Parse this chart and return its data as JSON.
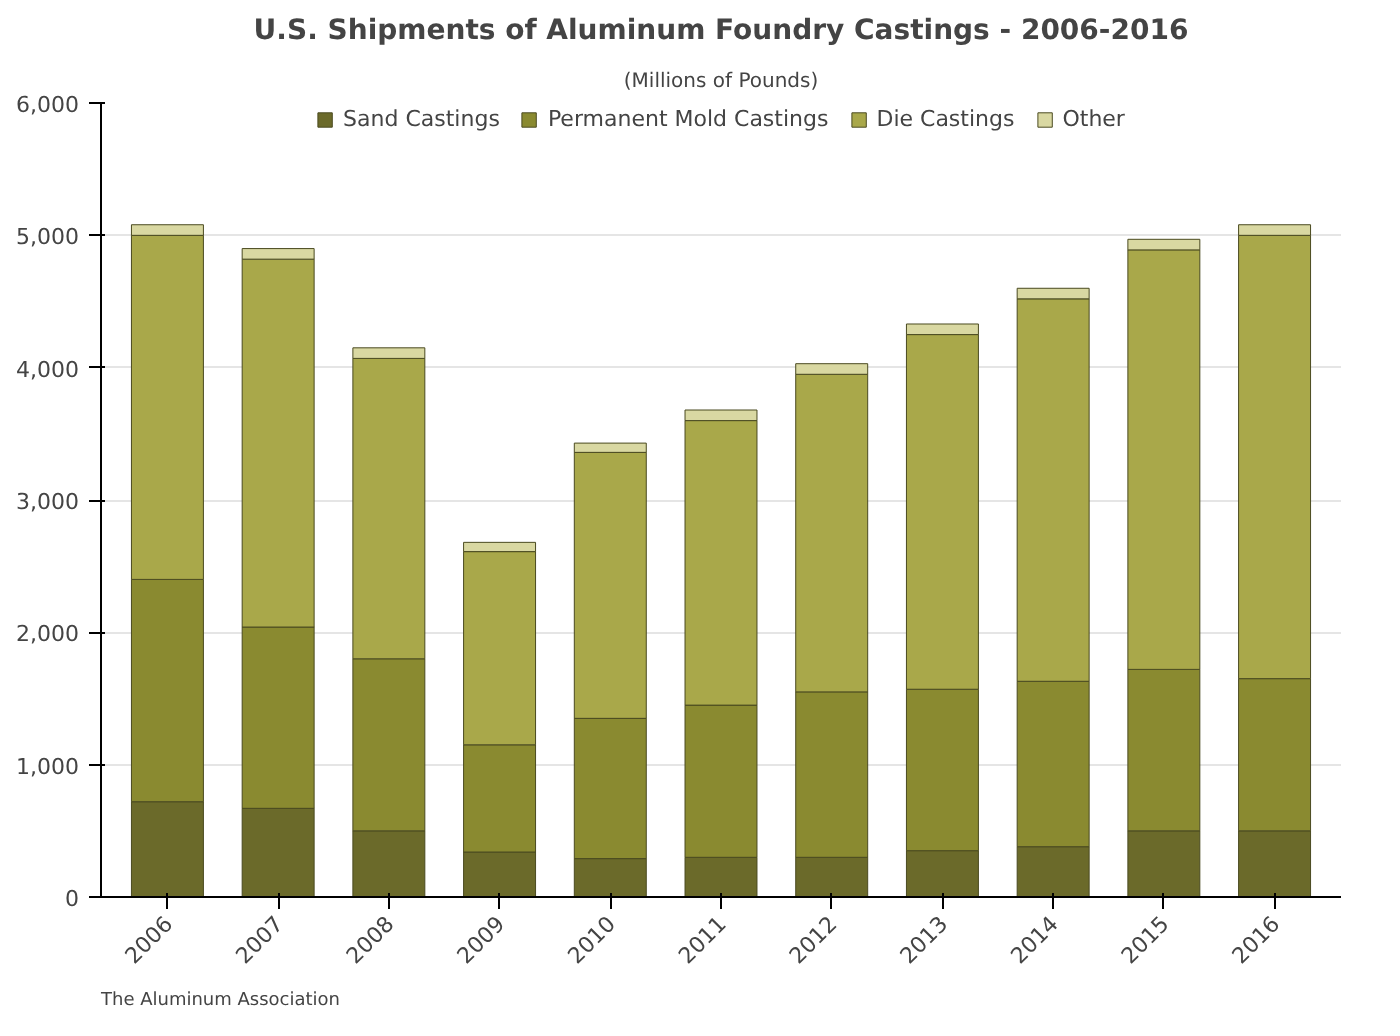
{
  "chart_data": {
    "type": "bar",
    "title": "U.S. Shipments of Aluminum Foundry Castings - 2006-2016",
    "subtitle": "(Millions of Pounds)",
    "categories": [
      "2006",
      "2007",
      "2008",
      "2009",
      "2010",
      "2011",
      "2012",
      "2013",
      "2014",
      "2015",
      "2016"
    ],
    "stacked": true,
    "series": [
      {
        "name": "Sand Castings",
        "color": "#6b6a2a",
        "values": [
          720,
          670,
          500,
          340,
          290,
          300,
          300,
          350,
          380,
          500,
          500
        ]
      },
      {
        "name": "Permanent Mold Castings",
        "color": "#8a8a30",
        "values": [
          1680,
          1370,
          1300,
          810,
          1060,
          1150,
          1250,
          1220,
          1250,
          1220,
          1150
        ]
      },
      {
        "name": "Die Castings",
        "color": "#a9a84a",
        "values": [
          2600,
          2780,
          2270,
          1460,
          2010,
          2150,
          2400,
          2680,
          2890,
          3170,
          3350
        ]
      },
      {
        "name": "Other",
        "color": "#d9d8a2",
        "values": [
          80,
          80,
          80,
          70,
          70,
          80,
          80,
          80,
          80,
          80,
          80
        ]
      }
    ],
    "ylim": [
      0,
      6000
    ],
    "yticks": [
      {
        "value": 0,
        "label": "0"
      },
      {
        "value": 1000,
        "label": "1,000"
      },
      {
        "value": 2000,
        "label": "2,000"
      },
      {
        "value": 3000,
        "label": "3,000"
      },
      {
        "value": 4000,
        "label": "4,000"
      },
      {
        "value": 5000,
        "label": "5,000"
      },
      {
        "value": 6000,
        "label": "6,000"
      }
    ],
    "grid": "y",
    "legend": "top",
    "annotations": [
      "The Aluminum Association"
    ]
  }
}
